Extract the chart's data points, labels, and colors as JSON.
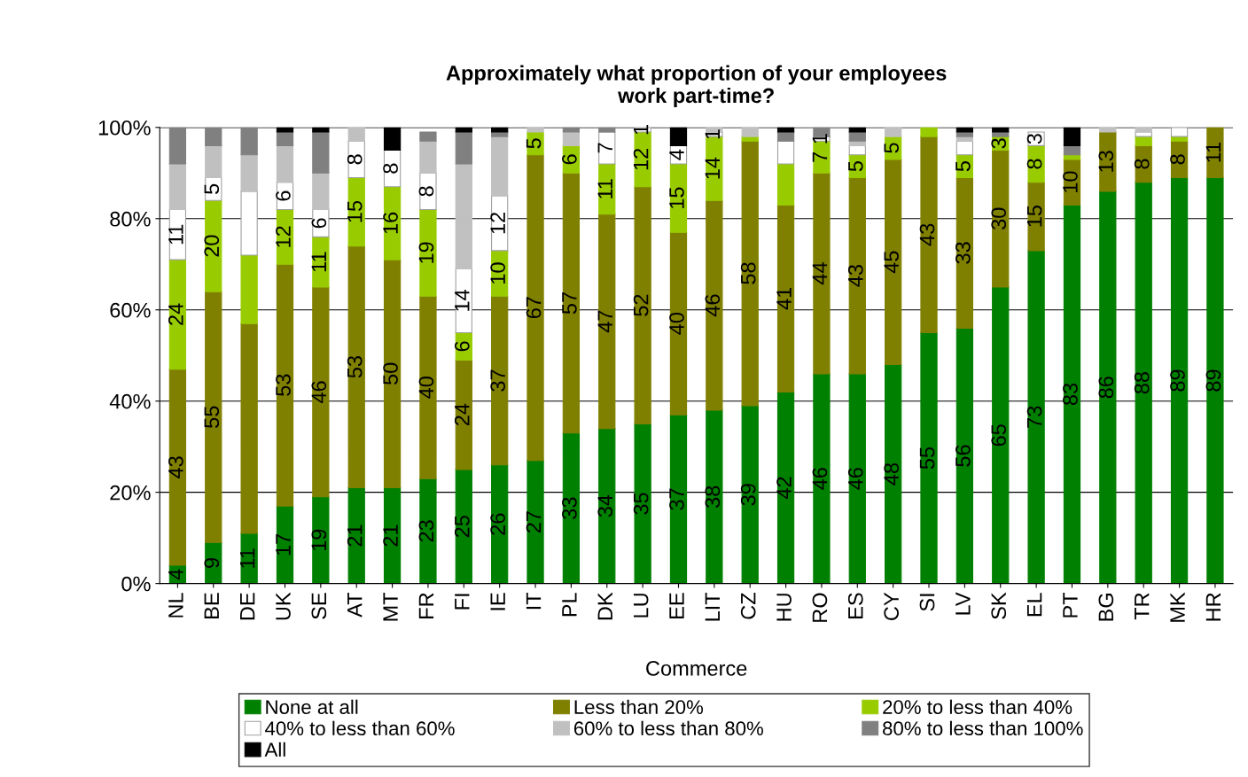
{
  "chart_data": {
    "type": "bar",
    "stacked": true,
    "title": "Approximately what proportion of your employees\nwork part-time?",
    "xlabel": "Commerce",
    "categories": [
      "NL",
      "BE",
      "DE",
      "UK",
      "SE",
      "AT",
      "MT",
      "FR",
      "FI",
      "IE",
      "IT",
      "PL",
      "DK",
      "LU",
      "EE",
      "LIT",
      "CZ",
      "HU",
      "RO",
      "ES",
      "CY",
      "SI",
      "LV",
      "SK",
      "EL",
      "PT",
      "BG",
      "TR",
      "MK",
      "HR"
    ],
    "ylim": [
      0,
      100
    ],
    "yticks": [
      {
        "value": 0,
        "label": "0%"
      },
      {
        "value": 20,
        "label": "20%"
      },
      {
        "value": 40,
        "label": "40%"
      },
      {
        "value": 60,
        "label": "60%"
      },
      {
        "value": 80,
        "label": "80%"
      },
      {
        "value": 100,
        "label": "100%"
      }
    ],
    "grid": "y",
    "legend": "bottom",
    "series": [
      {
        "name": "None at all",
        "color": "#008000",
        "values": [
          4,
          9,
          11,
          17,
          19,
          21,
          21,
          23,
          25,
          26,
          27,
          33,
          34,
          35,
          37,
          38,
          39,
          42,
          46,
          46,
          48,
          55,
          56,
          65,
          73,
          83,
          86,
          88,
          89,
          89
        ],
        "value_labels": [
          "4",
          "9",
          "11",
          "17",
          "19",
          "21",
          "21",
          "23",
          "25",
          "26",
          "27",
          "33",
          "34",
          "35",
          "37",
          "38",
          "39",
          "42",
          "46",
          "46",
          "48",
          "55",
          "56",
          "65",
          "73",
          "83",
          "86",
          "88",
          "89",
          "89"
        ]
      },
      {
        "name": "Less than 20%",
        "color": "#808000",
        "values": [
          43,
          55,
          46,
          53,
          46,
          53,
          50,
          40,
          24,
          37,
          67,
          57,
          47,
          52,
          40,
          46,
          58,
          41,
          44,
          43,
          45,
          43,
          33,
          30,
          15,
          10,
          13,
          8,
          8,
          11
        ],
        "value_labels": [
          "43",
          "55",
          null,
          "53",
          "46",
          "53",
          "50",
          "40",
          "24",
          "37",
          "67",
          "57",
          "47",
          "52",
          "40",
          "46",
          "58",
          "41",
          "44",
          "43",
          "45",
          "43",
          "33",
          "30",
          "15",
          "10",
          "13",
          "8",
          "8",
          "11"
        ]
      },
      {
        "name": "20% to less than 40%",
        "color": "#99cc00",
        "values": [
          24,
          20,
          15,
          12,
          11,
          15,
          16,
          19,
          6,
          10,
          5,
          6,
          11,
          12,
          15,
          14,
          1,
          9,
          7,
          5,
          5,
          2,
          5,
          3,
          8,
          1,
          null,
          2,
          1,
          null
        ],
        "value_labels": [
          "24",
          "20",
          null,
          "12",
          "11",
          "15",
          "16",
          "19",
          "6",
          "10",
          "5",
          "6",
          "11",
          "12",
          "15",
          "14",
          null,
          null,
          "7",
          "5",
          "5",
          null,
          "5",
          "3",
          "8",
          null,
          null,
          null,
          null,
          null
        ]
      },
      {
        "name": "40% to less than 60%",
        "color": "#ffffff",
        "values": [
          11,
          5,
          14,
          6,
          6,
          8,
          8,
          8,
          14,
          12,
          null,
          null,
          7,
          1,
          4,
          1,
          null,
          5,
          1,
          2,
          null,
          null,
          3,
          null,
          3,
          null,
          null,
          1,
          2,
          null
        ],
        "value_labels": [
          "11",
          "5",
          null,
          "6",
          "6",
          "8",
          "8",
          "8",
          "14",
          "12",
          null,
          null,
          "7",
          "1",
          "4",
          "1",
          null,
          null,
          "1",
          null,
          null,
          null,
          null,
          null,
          "3",
          null,
          null,
          null,
          null,
          null
        ]
      },
      {
        "name": "60% to less than 80%",
        "color": "#c0c0c0",
        "values": [
          10,
          7,
          8,
          8,
          8,
          3,
          null,
          7,
          23,
          13,
          1,
          3,
          null,
          null,
          null,
          1,
          2,
          null,
          null,
          1,
          2,
          null,
          1,
          null,
          null,
          null,
          1,
          1,
          null,
          null
        ]
      },
      {
        "name": "80% to less than 100%",
        "color": "#808080",
        "values": [
          8,
          4,
          6,
          3,
          9,
          null,
          null,
          2,
          7,
          1,
          null,
          1,
          1,
          null,
          null,
          null,
          null,
          2,
          2,
          2,
          null,
          null,
          1,
          1,
          null,
          2,
          null,
          null,
          null,
          null
        ]
      },
      {
        "name": "All",
        "color": "#000000",
        "values": [
          null,
          null,
          null,
          1,
          1,
          null,
          5,
          null,
          1,
          1,
          null,
          null,
          null,
          null,
          4,
          null,
          null,
          1,
          null,
          1,
          null,
          null,
          1,
          1,
          null,
          4,
          null,
          null,
          null,
          null
        ]
      }
    ]
  }
}
